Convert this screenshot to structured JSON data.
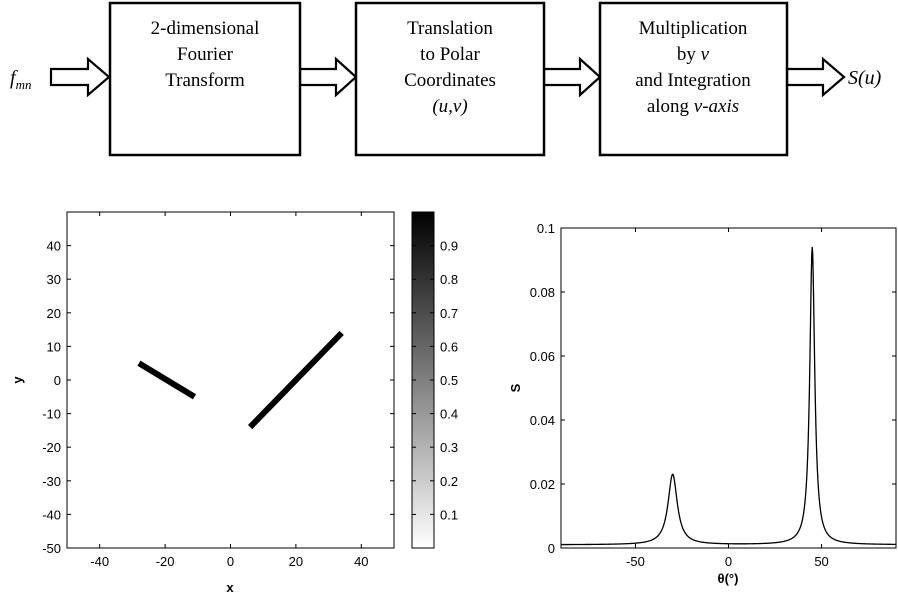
{
  "flow": {
    "input_label": "f",
    "input_sub": "mn",
    "output_label": "S(u)",
    "boxes": [
      {
        "lines": [
          {
            "text": "2-dimensional",
            "italic": false
          },
          {
            "text": "Fourier",
            "italic": false
          },
          {
            "text": "Transform",
            "italic": false
          }
        ]
      },
      {
        "lines": [
          {
            "text": "Translation",
            "italic": false
          },
          {
            "text": "to Polar",
            "italic": false
          },
          {
            "text": "Coordinates",
            "italic": false
          },
          {
            "text": "(u,v)",
            "italic": true
          }
        ]
      },
      {
        "lines": [
          {
            "text": "Multiplication",
            "italic": false
          },
          {
            "text": "by v",
            "italic": false,
            "italic_word": "v"
          },
          {
            "text": "and Integration",
            "italic": false
          },
          {
            "text": "along v-axis",
            "italic": false,
            "italic_word": "v-axis"
          }
        ]
      }
    ]
  },
  "chart_data": [
    {
      "type": "image",
      "xlabel": "x",
      "ylabel": "y",
      "xlim": [
        -50,
        50
      ],
      "ylim": [
        -50,
        50
      ],
      "xticks": [
        -40,
        -20,
        0,
        20,
        40
      ],
      "yticks": [
        -50,
        -40,
        -30,
        -20,
        -10,
        0,
        10,
        20,
        30,
        40
      ],
      "segments": [
        {
          "x1": -28,
          "y1": 5,
          "x2": -11,
          "y2": -5
        },
        {
          "x1": 6,
          "y1": -14,
          "x2": 34,
          "y2": 14
        }
      ],
      "colorbar": {
        "ticks": [
          0.1,
          0.2,
          0.3,
          0.4,
          0.5,
          0.6,
          0.7,
          0.8,
          0.9
        ],
        "range": [
          0,
          1
        ],
        "colormap": "gray-reversed"
      }
    },
    {
      "type": "line",
      "xlabel": "θ(°)",
      "ylabel": "S",
      "xlim": [
        -90,
        90
      ],
      "ylim": [
        0,
        0.1
      ],
      "xticks": [
        -50,
        0,
        50
      ],
      "yticks": [
        0,
        0.02,
        0.04,
        0.06,
        0.08,
        0.1
      ],
      "series": [
        {
          "peaks": [
            {
              "x": -30,
              "y": 0.023
            },
            {
              "x": 45,
              "y": 0.094
            }
          ],
          "baseline": 0.001
        }
      ]
    }
  ]
}
